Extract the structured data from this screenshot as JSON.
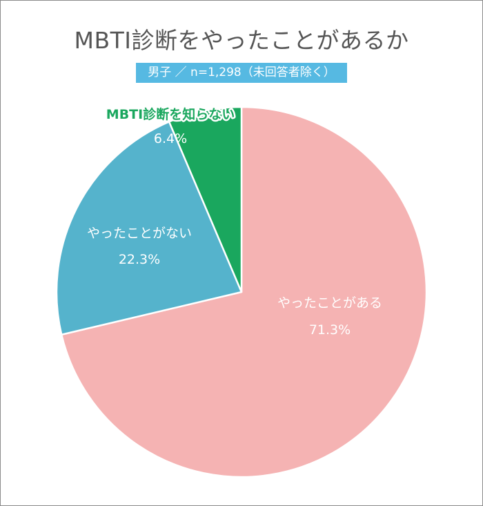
{
  "chart_data": {
    "type": "pie",
    "title": "MBTI診断をやったことがあるか",
    "subtitle": "男子 ／ n=1,298（未回答者除く）",
    "series": [
      {
        "name": "やったことがある",
        "value": 71.3,
        "label": "71.3%",
        "color": "#f5b3b3"
      },
      {
        "name": "やったことがない",
        "value": 22.3,
        "label": "22.3%",
        "color": "#55b3cc"
      },
      {
        "name": "MBTI診断を知らない",
        "value": 6.4,
        "label": "6.4%",
        "color": "#1aa75e"
      }
    ],
    "start": "12 o'clock",
    "direction": "clockwise"
  }
}
